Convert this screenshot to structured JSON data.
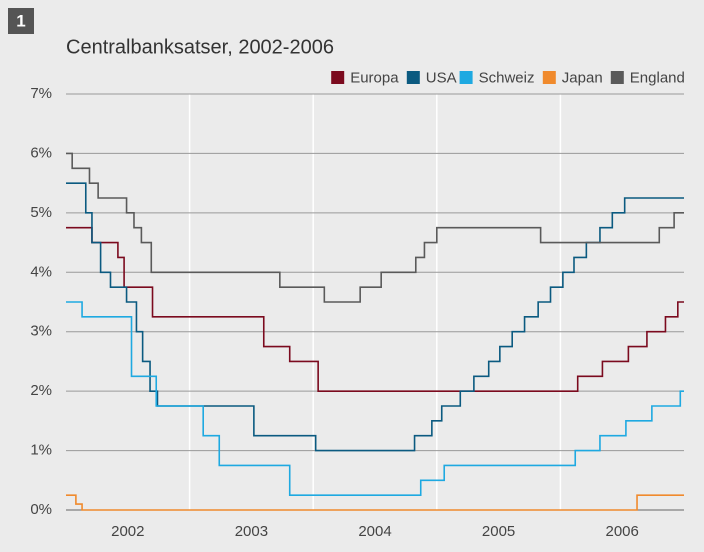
{
  "chart_data": {
    "type": "line",
    "badge": "1",
    "title": "Centralbanksatser, 2002-2006",
    "xlim": [
      2002,
      2007
    ],
    "xticks": [
      {
        "value": 2002.5,
        "label": "2002"
      },
      {
        "value": 2003.5,
        "label": "2003"
      },
      {
        "value": 2004.5,
        "label": "2004"
      },
      {
        "value": 2005.5,
        "label": "2005"
      },
      {
        "value": 2006.5,
        "label": "2006"
      }
    ],
    "xgrid": [
      2003,
      2004,
      2005,
      2006
    ],
    "ylim": [
      0,
      7
    ],
    "yticks": [
      {
        "value": 0,
        "label": "0%"
      },
      {
        "value": 1,
        "label": "1%"
      },
      {
        "value": 2,
        "label": "2%"
      },
      {
        "value": 3,
        "label": "3%"
      },
      {
        "value": 4,
        "label": "4%"
      },
      {
        "value": 5,
        "label": "5%"
      },
      {
        "value": 6,
        "label": "6%"
      },
      {
        "value": 7,
        "label": "7%"
      }
    ],
    "grid": true,
    "legend": "top-right",
    "series": [
      {
        "name": "Europa",
        "color": "#7b0a1e",
        "x": [
          2002.0,
          2002.21,
          2002.42,
          2002.47,
          2002.7,
          2003.6,
          2003.81,
          2004.04,
          2006.14,
          2006.34,
          2006.55,
          2006.7,
          2006.85,
          2006.95
        ],
        "values": [
          4.75,
          4.5,
          4.25,
          3.75,
          3.25,
          2.75,
          2.5,
          2.0,
          2.25,
          2.5,
          2.75,
          3.0,
          3.25,
          3.5
        ]
      },
      {
        "name": "USA",
        "color": "#0b5a80",
        "x": [
          2002.0,
          2002.16,
          2002.21,
          2002.28,
          2002.36,
          2002.49,
          2002.57,
          2002.62,
          2002.68,
          2002.74,
          2003.52,
          2004.02,
          2004.82,
          2004.96,
          2005.04,
          2005.19,
          2005.3,
          2005.42,
          2005.51,
          2005.61,
          2005.71,
          2005.82,
          2005.92,
          2006.02,
          2006.11,
          2006.21,
          2006.32,
          2006.42,
          2006.52
        ],
        "values": [
          5.5,
          5.0,
          4.5,
          4.0,
          3.75,
          3.5,
          3.0,
          2.5,
          2.0,
          1.75,
          1.25,
          1.0,
          1.25,
          1.5,
          1.75,
          2.0,
          2.25,
          2.5,
          2.75,
          3.0,
          3.25,
          3.5,
          3.75,
          4.0,
          4.25,
          4.5,
          4.75,
          5.0,
          5.25
        ]
      },
      {
        "name": "Schweiz",
        "color": "#1ea9e1",
        "x": [
          2002.0,
          2002.13,
          2002.53,
          2002.73,
          2003.11,
          2003.24,
          2003.81,
          2004.87,
          2005.06,
          2006.12,
          2006.32,
          2006.53,
          2006.74,
          2006.97
        ],
        "values": [
          3.5,
          3.25,
          2.25,
          1.75,
          1.25,
          0.75,
          0.25,
          0.5,
          0.75,
          1.0,
          1.25,
          1.5,
          1.75,
          2.0
        ]
      },
      {
        "name": "Japan",
        "color": "#f08a2c",
        "x": [
          2002.0,
          2002.08,
          2002.13,
          2006.62
        ],
        "values": [
          0.25,
          0.1,
          0,
          0.25
        ]
      },
      {
        "name": "England",
        "color": "#5a5a5a",
        "x": [
          2002.0,
          2002.05,
          2002.19,
          2002.26,
          2002.49,
          2002.55,
          2002.61,
          2002.69,
          2003.73,
          2004.09,
          2004.38,
          2004.55,
          2004.83,
          2004.9,
          2005.0,
          2005.84,
          2006.8,
          2006.92
        ],
        "values": [
          6.0,
          5.75,
          5.5,
          5.25,
          5.0,
          4.75,
          4.5,
          4.0,
          3.75,
          3.5,
          3.75,
          4.0,
          4.25,
          4.5,
          4.75,
          4.5,
          4.75,
          5.0
        ]
      }
    ]
  }
}
